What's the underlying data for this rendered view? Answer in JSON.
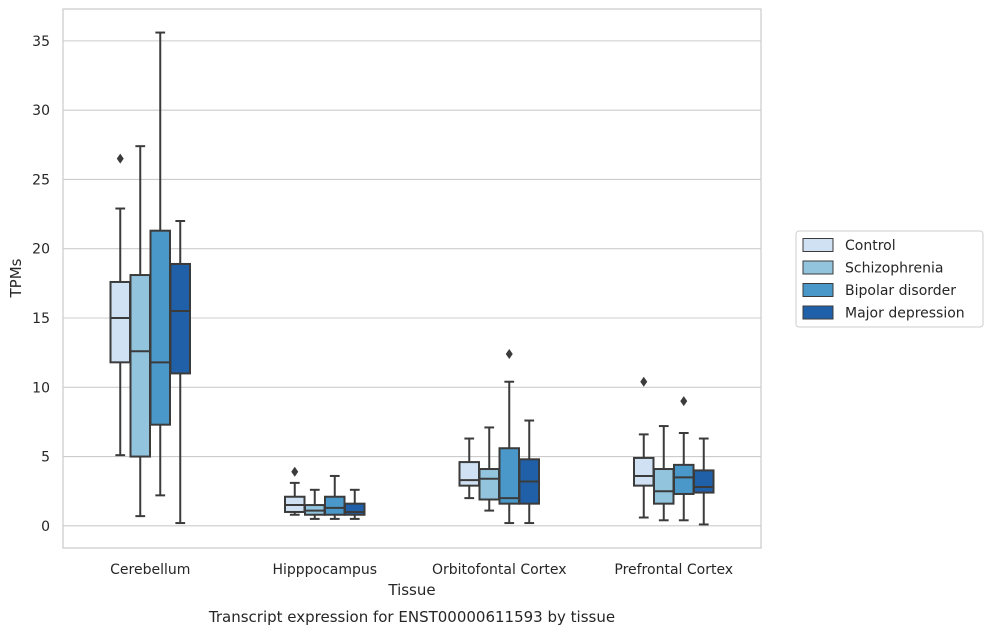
{
  "chart_data": {
    "type": "box",
    "title": "",
    "caption": "Transcript expression for ENST00000611593 by tissue",
    "xlabel": "Tissue",
    "ylabel": "TPMs",
    "ylim": [
      -1.6,
      37.3
    ],
    "yticks": [
      0,
      5,
      10,
      15,
      20,
      25,
      30,
      35
    ],
    "grid": "horizontal",
    "legend_position": "right",
    "categories": [
      "Cerebellum",
      "Hipppocampus",
      "Orbitofontal Cortex",
      "Prefrontal Cortex"
    ],
    "series": [
      {
        "name": "Control",
        "color": "#cfe1f2",
        "boxes": [
          {
            "whislo": 5.1,
            "q1": 11.8,
            "med": 15.0,
            "q3": 17.6,
            "whishi": 22.9,
            "fliers": [
              26.5
            ]
          },
          {
            "whislo": 0.8,
            "q1": 1.0,
            "med": 1.5,
            "q3": 2.1,
            "whishi": 3.1,
            "fliers": [
              3.9
            ]
          },
          {
            "whislo": 2.0,
            "q1": 2.9,
            "med": 3.3,
            "q3": 4.6,
            "whishi": 6.3,
            "fliers": []
          },
          {
            "whislo": 0.6,
            "q1": 2.9,
            "med": 3.6,
            "q3": 4.9,
            "whishi": 6.6,
            "fliers": [
              10.4
            ]
          }
        ]
      },
      {
        "name": "Schizophrenia",
        "color": "#93c4de",
        "boxes": [
          {
            "whislo": 0.7,
            "q1": 5.0,
            "med": 12.6,
            "q3": 18.1,
            "whishi": 27.4,
            "fliers": []
          },
          {
            "whislo": 0.5,
            "q1": 0.8,
            "med": 1.1,
            "q3": 1.5,
            "whishi": 2.6,
            "fliers": []
          },
          {
            "whislo": 1.1,
            "q1": 1.9,
            "med": 3.4,
            "q3": 4.1,
            "whishi": 7.1,
            "fliers": []
          },
          {
            "whislo": 0.4,
            "q1": 1.6,
            "med": 2.5,
            "q3": 4.1,
            "whishi": 7.2,
            "fliers": []
          }
        ]
      },
      {
        "name": "Bipolar disorder",
        "color": "#4a98c9",
        "boxes": [
          {
            "whislo": 2.2,
            "q1": 7.3,
            "med": 11.8,
            "q3": 21.3,
            "whishi": 35.6,
            "fliers": []
          },
          {
            "whislo": 0.5,
            "q1": 0.8,
            "med": 1.3,
            "q3": 2.1,
            "whishi": 3.6,
            "fliers": []
          },
          {
            "whislo": 0.2,
            "q1": 1.6,
            "med": 2.0,
            "q3": 5.6,
            "whishi": 10.4,
            "fliers": [
              12.4
            ]
          },
          {
            "whislo": 0.4,
            "q1": 2.3,
            "med": 3.5,
            "q3": 4.4,
            "whishi": 6.7,
            "fliers": [
              9.0
            ]
          }
        ]
      },
      {
        "name": "Major depression",
        "color": "#2060a8",
        "boxes": [
          {
            "whislo": 0.2,
            "q1": 11.0,
            "med": 15.5,
            "q3": 18.9,
            "whishi": 22.0,
            "fliers": []
          },
          {
            "whislo": 0.5,
            "q1": 0.8,
            "med": 1.0,
            "q3": 1.6,
            "whishi": 2.6,
            "fliers": []
          },
          {
            "whislo": 0.2,
            "q1": 1.6,
            "med": 3.2,
            "q3": 4.8,
            "whishi": 7.6,
            "fliers": []
          },
          {
            "whislo": 0.1,
            "q1": 2.4,
            "med": 2.8,
            "q3": 4.0,
            "whishi": 6.3,
            "fliers": []
          }
        ]
      }
    ]
  },
  "colors": {
    "frame": "#cccccc",
    "grid": "#cccccc",
    "box_edge": "#3b3b3b",
    "text": "#262626"
  }
}
